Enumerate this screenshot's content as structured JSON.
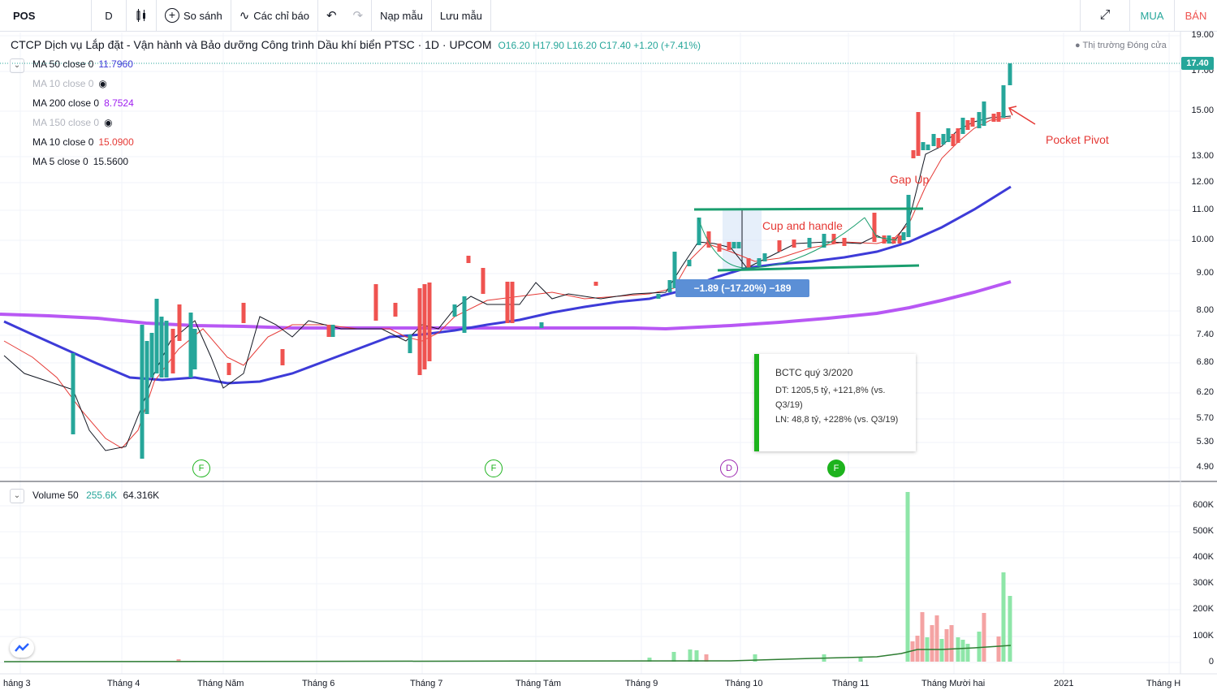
{
  "toolbar": {
    "symbol": "POS",
    "interval": "D",
    "compare_label": "So sánh",
    "indicators_label": "Các chỉ báo",
    "load_template_label": "Nạp mẫu",
    "save_template_label": "Lưu mẫu",
    "buy_label": "MUA",
    "sell_label": "BÁN"
  },
  "header": {
    "title": "CTCP Dịch vụ Lắp đặt - Vận hành và Bảo dưỡng Công trình Dầu khí biển PTSC · 1D · UPCOM",
    "ohlc": "O16.20  H17.90  L16.20  C17.40  +1.20 (+7.41%)",
    "market_status": "● Thị trường Đóng cửa"
  },
  "indicators": [
    {
      "label": "MA 50 close 0",
      "value": "11.7960",
      "color": "#3d3bd8",
      "hidden": false
    },
    {
      "label": "MA 10 close 0",
      "value": "",
      "color": "#999999",
      "hidden": true
    },
    {
      "label": "MA 200 close 0",
      "value": "8.7524",
      "color": "#a020f0",
      "hidden": false
    },
    {
      "label": "MA 150 close 0",
      "value": "",
      "color": "#999999",
      "hidden": true
    },
    {
      "label": "MA 10 close 0",
      "value": "15.0900",
      "color": "#e53935",
      "hidden": false
    },
    {
      "label": "MA 5 close 0",
      "value": "15.5600",
      "color": "#131722",
      "hidden": false
    }
  ],
  "price_axis": [
    "19.00",
    "17.00",
    "15.00",
    "13.00",
    "12.00",
    "11.00",
    "10.00",
    "9.00",
    "8.00",
    "7.40",
    "6.80",
    "6.20",
    "5.70",
    "5.30",
    "4.90"
  ],
  "current_price": "17.40",
  "volume_axis": [
    "600K",
    "500K",
    "400K",
    "300K",
    "200K",
    "100K",
    "0"
  ],
  "volume_indicator": {
    "label": "Volume 50",
    "value": "255.6K",
    "ma_value": "64.316K"
  },
  "x_axis": [
    "háng 3",
    "Tháng 4",
    "Tháng Năm",
    "Tháng 6",
    "Tháng 7",
    "Tháng Tám",
    "Tháng 9",
    "Tháng 10",
    "Tháng 11",
    "Tháng Mười hai",
    "2021",
    "Tháng H"
  ],
  "annotations": {
    "cup_handle": "Cup and handle",
    "gap_up": "Gap Up",
    "pocket_pivot": "Pocket Pivot",
    "measure": "−1.89 (−17.20%) −189"
  },
  "events": [
    {
      "type": "F",
      "style": "outline"
    },
    {
      "type": "F",
      "style": "outline"
    },
    {
      "type": "D",
      "style": "purple"
    },
    {
      "type": "F",
      "style": "filled"
    }
  ],
  "tooltip": {
    "title": "BCTC quý 3/2020",
    "line1": "DT: 1205,5 tỷ, +121,8% (vs. Q3/19)",
    "line2": "LN: 48,8 tỷ, +228% (vs. Q3/19)"
  },
  "colors": {
    "up": "#26a69a",
    "down": "#ef5350",
    "ma50": "#3d3bd8",
    "ma200": "#a020f0",
    "trendline": "#1a9e6e"
  }
}
